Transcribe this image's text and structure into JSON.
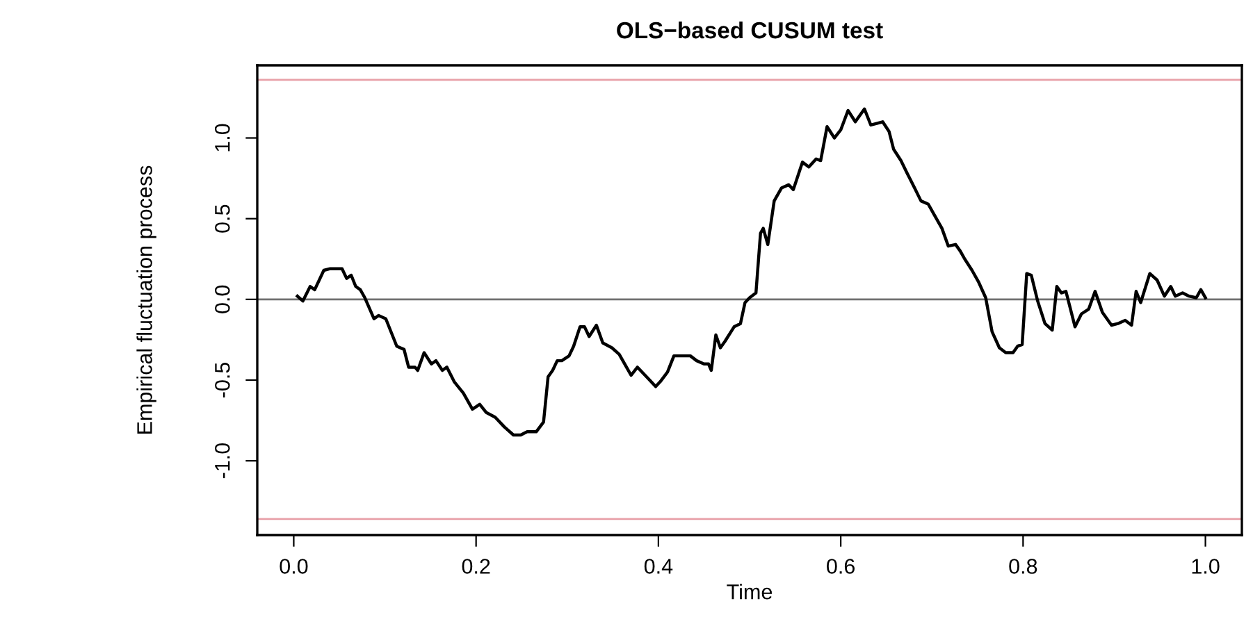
{
  "chart_data": {
    "type": "line",
    "title": "OLS−based CUSUM test",
    "xlabel": "Time",
    "ylabel": "Empirical fluctuation process",
    "x": [
      0.004,
      0.01,
      0.018,
      0.023,
      0.033,
      0.04,
      0.053,
      0.058,
      0.063,
      0.068,
      0.073,
      0.078,
      0.088,
      0.093,
      0.101,
      0.113,
      0.121,
      0.126,
      0.133,
      0.136,
      0.143,
      0.151,
      0.156,
      0.163,
      0.168,
      0.176,
      0.186,
      0.196,
      0.204,
      0.211,
      0.221,
      0.231,
      0.241,
      0.249,
      0.256,
      0.266,
      0.274,
      0.279,
      0.284,
      0.289,
      0.294,
      0.302,
      0.307,
      0.314,
      0.319,
      0.324,
      0.332,
      0.339,
      0.349,
      0.357,
      0.365,
      0.37,
      0.377,
      0.387,
      0.397,
      0.402,
      0.41,
      0.417,
      0.435,
      0.442,
      0.45,
      0.455,
      0.458,
      0.463,
      0.468,
      0.473,
      0.483,
      0.49,
      0.495,
      0.5,
      0.507,
      0.512,
      0.515,
      0.52,
      0.527,
      0.535,
      0.543,
      0.548,
      0.558,
      0.565,
      0.573,
      0.578,
      0.585,
      0.593,
      0.6,
      0.608,
      0.616,
      0.626,
      0.633,
      0.646,
      0.653,
      0.658,
      0.666,
      0.673,
      0.681,
      0.688,
      0.696,
      0.703,
      0.711,
      0.718,
      0.726,
      0.731,
      0.736,
      0.744,
      0.751,
      0.759,
      0.766,
      0.774,
      0.781,
      0.789,
      0.794,
      0.799,
      0.804,
      0.809,
      0.816,
      0.824,
      0.832,
      0.837,
      0.842,
      0.847,
      0.857,
      0.864,
      0.872,
      0.879,
      0.887,
      0.897,
      0.904,
      0.912,
      0.919,
      0.924,
      0.929,
      0.939,
      0.947,
      0.955,
      0.962,
      0.967,
      0.975,
      0.982,
      0.99,
      0.995,
      1.0
    ],
    "series": [
      {
        "color": "#000000",
        "values": [
          0.02,
          -0.01,
          0.08,
          0.06,
          0.18,
          0.19,
          0.19,
          0.13,
          0.15,
          0.08,
          0.06,
          0.01,
          -0.12,
          -0.1,
          -0.12,
          -0.29,
          -0.31,
          -0.42,
          -0.42,
          -0.44,
          -0.33,
          -0.4,
          -0.38,
          -0.44,
          -0.42,
          -0.51,
          -0.58,
          -0.68,
          -0.65,
          -0.7,
          -0.73,
          -0.79,
          -0.84,
          -0.84,
          -0.82,
          -0.82,
          -0.76,
          -0.48,
          -0.44,
          -0.38,
          -0.38,
          -0.35,
          -0.29,
          -0.17,
          -0.17,
          -0.23,
          -0.16,
          -0.27,
          -0.3,
          -0.34,
          -0.42,
          -0.47,
          -0.42,
          -0.48,
          -0.54,
          -0.51,
          -0.45,
          -0.35,
          -0.35,
          -0.38,
          -0.4,
          -0.4,
          -0.44,
          -0.22,
          -0.3,
          -0.26,
          -0.17,
          -0.15,
          -0.02,
          0.01,
          0.04,
          0.41,
          0.44,
          0.34,
          0.61,
          0.69,
          0.71,
          0.68,
          0.85,
          0.82,
          0.87,
          0.86,
          1.07,
          1.0,
          1.05,
          1.17,
          1.1,
          1.18,
          1.08,
          1.1,
          1.04,
          0.93,
          0.86,
          0.78,
          0.69,
          0.61,
          0.59,
          0.52,
          0.44,
          0.33,
          0.34,
          0.3,
          0.25,
          0.18,
          0.11,
          0.01,
          -0.2,
          -0.3,
          -0.33,
          -0.33,
          -0.29,
          -0.28,
          0.16,
          0.15,
          -0.01,
          -0.15,
          -0.19,
          0.08,
          0.04,
          0.05,
          -0.17,
          -0.09,
          -0.06,
          0.05,
          -0.08,
          -0.16,
          -0.15,
          -0.13,
          -0.16,
          0.05,
          -0.02,
          0.16,
          0.12,
          0.02,
          0.08,
          0.02,
          0.04,
          0.02,
          0.01,
          0.06,
          0.01
        ]
      }
    ],
    "xlim": [
      -0.04,
      1.04
    ],
    "ylim": [
      -1.46,
      1.45
    ],
    "xticks": [
      {
        "value": 0.0,
        "label": "0.0"
      },
      {
        "value": 0.2,
        "label": "0.2"
      },
      {
        "value": 0.4,
        "label": "0.4"
      },
      {
        "value": 0.6,
        "label": "0.6"
      },
      {
        "value": 0.8,
        "label": "0.8"
      },
      {
        "value": 1.0,
        "label": "1.0"
      }
    ],
    "yticks": [
      {
        "value": -1.0,
        "label": "-1.0"
      },
      {
        "value": -0.5,
        "label": "-0.5"
      },
      {
        "value": 0.0,
        "label": "0.0"
      },
      {
        "value": 0.5,
        "label": "0.5"
      },
      {
        "value": 1.0,
        "label": "1.0"
      }
    ],
    "ref_lines": [
      {
        "axis": "y",
        "value": 1.36,
        "color": "#e8a0a8"
      },
      {
        "axis": "y",
        "value": -1.36,
        "color": "#e8a0a8"
      },
      {
        "axis": "y",
        "value": 0,
        "color": "#707070"
      }
    ],
    "grid": false,
    "legend": false,
    "line_style": "solid",
    "marker": "none"
  }
}
